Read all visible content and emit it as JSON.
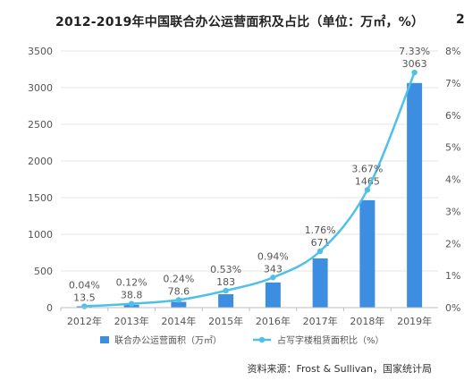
{
  "title": "2012-2019年中国联合办公运营面积及占比（单位：万㎡，%）",
  "title_cut_glyph": "2",
  "source": "资料来源：Frost & Sullivan，国家统计局",
  "colors": {
    "bar": "#3d8ee0",
    "line": "#4fc0e8",
    "grid": "#e6e6e6",
    "axis_text": "#555555"
  },
  "chart_data": {
    "type": "bar",
    "categories": [
      "2012年",
      "2013年",
      "2014年",
      "2015年",
      "2016年",
      "2017年",
      "2018年",
      "2019年"
    ],
    "series": [
      {
        "name": "联合办公运营面积（万㎡）",
        "type": "bar",
        "axis": "left",
        "values": [
          13.5,
          38.8,
          78.6,
          183,
          343,
          671,
          1465,
          3063
        ],
        "labels": [
          "13.5",
          "38.8",
          "78.6",
          "183",
          "343",
          "671",
          "1465",
          "3063"
        ]
      },
      {
        "name": "占写字楼租赁面积比（%）",
        "type": "line",
        "axis": "right",
        "values": [
          0.04,
          0.12,
          0.24,
          0.53,
          0.94,
          1.76,
          3.67,
          7.33
        ],
        "labels": [
          "0.04%",
          "0.12%",
          "0.24%",
          "0.53%",
          "0.94%",
          "1.76%",
          "3.67%",
          "7.33%"
        ]
      }
    ],
    "ylim_left": [
      0,
      3500
    ],
    "left_ticks": [
      "0",
      "500",
      "1000",
      "1500",
      "2000",
      "2500",
      "3000",
      "3500"
    ],
    "ylim_right": [
      0,
      8
    ],
    "right_ticks": [
      "0%",
      "1%",
      "2%",
      "3%",
      "4%",
      "5%",
      "6%",
      "7%",
      "8%"
    ],
    "grid": true,
    "legend_position": "bottom"
  }
}
